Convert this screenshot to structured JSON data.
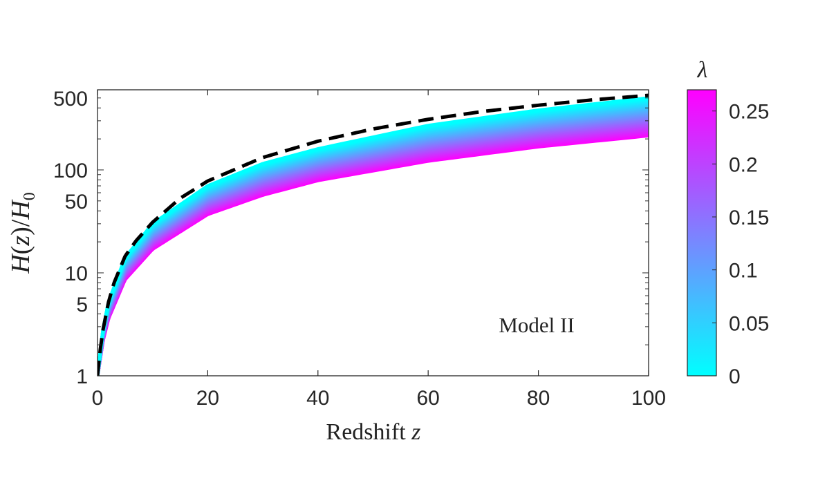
{
  "chart_data": {
    "type": "line",
    "xlabel": "Redshift z",
    "ylabel": "H(z)/H0",
    "xlim": [
      0,
      100
    ],
    "ylim": [
      1,
      600
    ],
    "yscale": "log",
    "x_ticks": [
      "0",
      "20",
      "40",
      "60",
      "80",
      "100"
    ],
    "y_ticks": [
      "1",
      "5",
      "10",
      "50",
      "100",
      "500"
    ],
    "annotation": "Model II",
    "grid": false,
    "colorbar": {
      "label": "λ",
      "range": [
        0,
        0.27
      ],
      "ticks": [
        "0",
        "0.05",
        "0.1",
        "0.15",
        "0.2",
        "0.25"
      ],
      "color_low": "#00ffff",
      "color_high": "#ff00ff"
    },
    "band": {
      "description": "family of H(z)/H0 curves colored by λ from 0 to 0.27",
      "upper_edge_lambda_0": {
        "x": [
          0,
          1,
          2,
          5,
          10,
          20,
          30,
          40,
          60,
          80,
          100
        ],
        "y": [
          1,
          2.8,
          5.2,
          14,
          30,
          70,
          115,
          160,
          270,
          380,
          500
        ]
      },
      "lower_edge_lambda_max": {
        "x": [
          0,
          1,
          2,
          5,
          10,
          20,
          30,
          40,
          60,
          80,
          100
        ],
        "y": [
          1,
          2.2,
          3.6,
          8.6,
          17,
          37,
          57,
          79,
          122,
          168,
          215
        ]
      }
    },
    "series": [
      {
        "style": "dashed",
        "color": "#000000",
        "x": [
          0,
          0.5,
          1,
          2,
          3,
          5,
          7,
          10,
          15,
          20,
          30,
          40,
          50,
          60,
          70,
          80,
          90,
          100
        ],
        "y": [
          1,
          1.8,
          2.8,
          5.2,
          8,
          14.5,
          20.5,
          31,
          53,
          78,
          132,
          190,
          250,
          310,
          370,
          425,
          480,
          530
        ]
      }
    ]
  }
}
